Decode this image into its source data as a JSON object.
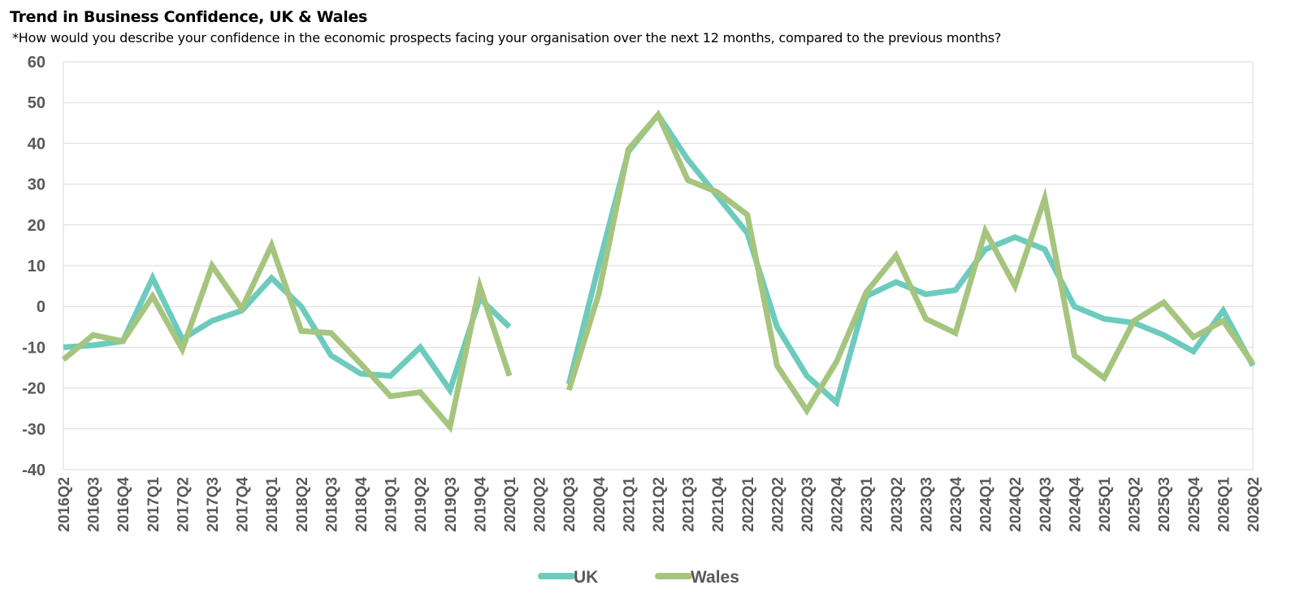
{
  "chart_data": {
    "type": "line",
    "title": "Trend in Business Confidence, UK & Wales",
    "subtitle": "*How would you describe your confidence in the economic prospects facing your organisation over the next 12 months, compared to the previous months?",
    "xlabel": "",
    "ylabel": "",
    "ylim": [
      -40,
      60
    ],
    "yticks": [
      60,
      50,
      40,
      30,
      20,
      10,
      0,
      -10,
      -20,
      -30,
      -40
    ],
    "grid": true,
    "legend_position": "bottom",
    "categories": [
      "2016Q2",
      "2016Q3",
      "2016Q4",
      "2017Q1",
      "2017Q2",
      "2017Q3",
      "2017Q4",
      "2018Q1",
      "2018Q2",
      "2018Q3",
      "2018Q4",
      "2019Q1",
      "2019Q2",
      "2019Q3",
      "2019Q4",
      "2020Q1",
      "2020Q2",
      "2020Q3",
      "2020Q4",
      "2021Q1",
      "2021Q2",
      "2021Q3",
      "2021Q4",
      "2022Q1",
      "2022Q2",
      "2022Q3",
      "2022Q4",
      "2023Q1",
      "2023Q2",
      "2023Q3",
      "2023Q4",
      "2024Q1",
      "2024Q2",
      "2024Q3",
      "2024Q4",
      "2025Q1",
      "2025Q2",
      "2025Q3",
      "2025Q4",
      "2026Q1",
      "2026Q2"
    ],
    "series": [
      {
        "name": "UK",
        "color": "#6ccbbd",
        "values": [
          -10,
          -9.5,
          -8.5,
          7,
          -8,
          -3.5,
          -1,
          7,
          0,
          -12,
          -16.5,
          -17,
          -10,
          -20.5,
          2,
          -5,
          null,
          -19,
          10,
          38,
          47,
          36,
          27,
          18,
          -5,
          -17,
          -23.5,
          2.5,
          6,
          3,
          4,
          14,
          17,
          14,
          0,
          -3,
          -4,
          -7,
          -11,
          -1,
          -14.5
        ]
      },
      {
        "name": "Wales",
        "color": "#a5c57e",
        "values": [
          -13,
          -7,
          -8.5,
          2.5,
          -10.5,
          10,
          -0.5,
          15,
          -6,
          -6.5,
          -14,
          -22,
          -21,
          -29.5,
          5,
          -17,
          null,
          -20.5,
          3,
          38.5,
          47,
          31,
          28,
          22.5,
          -14.5,
          -25.5,
          -13.5,
          3.5,
          12.5,
          -3,
          -6.5,
          18.5,
          5,
          26.5,
          -12,
          -17.5,
          -3.5,
          1,
          -7.5,
          -3.5,
          -14
        ]
      }
    ]
  }
}
